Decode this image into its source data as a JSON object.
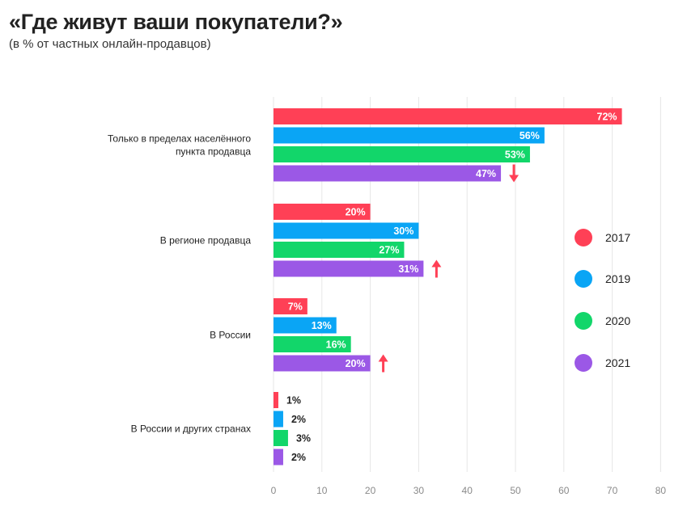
{
  "header": {
    "title": "«Где живут ваши покупатели?»",
    "subtitle": "(в % от частных онлайн-продавцов)"
  },
  "colors": {
    "2017": "#ff4056",
    "2019": "#0aa5f5",
    "2020": "#12d66a",
    "2021": "#9b58e6",
    "arrow": "#ff4056",
    "grid": "#e6e6e6"
  },
  "chart_data": {
    "type": "bar",
    "orientation": "horizontal",
    "title": "«Где живут ваши покупатели?»",
    "subtitle": "(в % от частных онлайн-продавцов)",
    "xlim": [
      0,
      80
    ],
    "xticks": [
      0,
      10,
      20,
      30,
      40,
      50,
      60,
      70,
      80
    ],
    "grid": true,
    "legend_position": "right",
    "categories": [
      [
        "Только в пределах населённого",
        "пункта продавца"
      ],
      [
        "В регионе продавца"
      ],
      [
        "В России"
      ],
      [
        "В России и других странах"
      ]
    ],
    "series": [
      {
        "name": "2017",
        "values": [
          72,
          20,
          7,
          1
        ],
        "labels": [
          "72%",
          "20%",
          "7%",
          "1%"
        ]
      },
      {
        "name": "2019",
        "values": [
          56,
          30,
          13,
          2
        ],
        "labels": [
          "56%",
          "30%",
          "13%",
          "2%"
        ]
      },
      {
        "name": "2020",
        "values": [
          53,
          27,
          16,
          3
        ],
        "labels": [
          "53%",
          "27%",
          "16%",
          "3%"
        ]
      },
      {
        "name": "2021",
        "values": [
          47,
          31,
          20,
          2
        ],
        "labels": [
          "47%",
          "31%",
          "20%",
          "2%"
        ]
      }
    ],
    "trend_arrows": [
      "down",
      "up",
      "up",
      null
    ]
  }
}
